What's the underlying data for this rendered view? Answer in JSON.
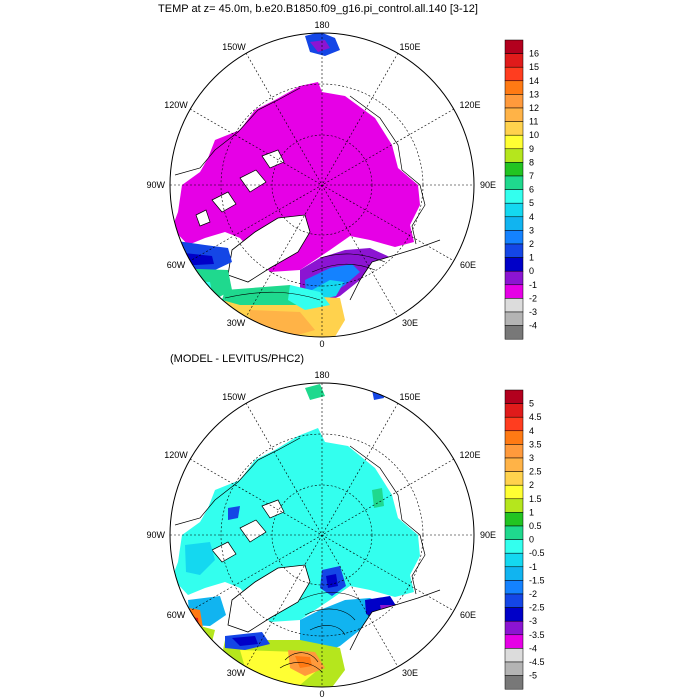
{
  "panels": [
    {
      "title": "TEMP at z=  45.0m, b.e20.B1850.f09_g16.pi_control.all.140 [3-12]",
      "lon_labels": {
        "top": "180",
        "bottom": "0",
        "left": "90W",
        "right": "90E",
        "ul1": "150W",
        "ul2": "120W",
        "ur1": "150E",
        "ur2": "120E",
        "ll1": "60W",
        "ll2": "30W",
        "lr1": "60E",
        "lr2": "30E"
      },
      "colorbar": {
        "labels": [
          "16",
          "15",
          "14",
          "13",
          "12",
          "11",
          "10",
          "9",
          "8",
          "7",
          "6",
          "5",
          "4",
          "3",
          "2",
          "1",
          "0",
          "-1",
          "-2",
          "-3",
          "-4"
        ],
        "colors": [
          "#b3001e",
          "#e01b1b",
          "#ff3d1f",
          "#ff7a14",
          "#ff9a3c",
          "#ffb347",
          "#ffd24d",
          "#ffff33",
          "#b5e61d",
          "#22c422",
          "#1fd98e",
          "#33ffee",
          "#14d8f0",
          "#11b4f0",
          "#1482ff",
          "#1446e6",
          "#0000c8",
          "#8c14d2",
          "#e600e6",
          "#dcdcdc",
          "#b4b4b4",
          "#787878"
        ]
      }
    },
    {
      "title": "(MODEL - LEVITUS/PHC2)",
      "lon_labels": {
        "top": "180",
        "bottom": "0",
        "left": "90W",
        "right": "90E",
        "ul1": "150W",
        "ul2": "120W",
        "ur1": "150E",
        "ur2": "120E",
        "ll1": "60W",
        "ll2": "30W",
        "lr1": "60E",
        "lr2": "30E"
      },
      "colorbar": {
        "labels": [
          "5",
          "4.5",
          "4",
          "3.5",
          "3",
          "2.5",
          "2",
          "1.5",
          "1",
          "0.5",
          "0",
          "-0.5",
          "-1",
          "-1.5",
          "-2",
          "-2.5",
          "-3",
          "-3.5",
          "-4",
          "-4.5",
          "-5"
        ],
        "colors": [
          "#b3001e",
          "#e01b1b",
          "#ff3d1f",
          "#ff7a14",
          "#ff9a3c",
          "#ffb347",
          "#ffd24d",
          "#ffff33",
          "#b5e61d",
          "#22c422",
          "#1fd98e",
          "#33ffee",
          "#14d8f0",
          "#11b4f0",
          "#1482ff",
          "#1446e6",
          "#0000c8",
          "#8c14d2",
          "#e600e6",
          "#dcdcdc",
          "#b4b4b4",
          "#787878"
        ]
      }
    }
  ]
}
